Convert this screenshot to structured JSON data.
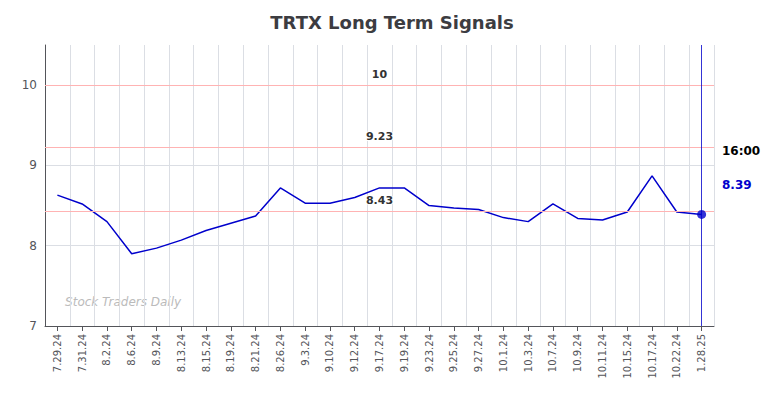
{
  "chart_data": {
    "type": "line",
    "title": "TRTX Long Term Signals",
    "categories": [
      "7.29.24",
      "7.31.24",
      "8.2.24",
      "8.6.24",
      "8.9.24",
      "8.13.24",
      "8.15.24",
      "8.19.24",
      "8.21.24",
      "8.26.24",
      "9.3.24",
      "9.10.24",
      "9.12.24",
      "9.17.24",
      "9.19.24",
      "9.23.24",
      "9.25.24",
      "9.27.24",
      "10.1.24",
      "10.3.24",
      "10.7.24",
      "10.9.24",
      "10.11.24",
      "10.15.24",
      "10.17.24",
      "10.22.24",
      "1.28.25"
    ],
    "values": [
      8.63,
      8.52,
      8.3,
      7.9,
      7.97,
      8.07,
      8.19,
      8.28,
      8.37,
      8.72,
      8.53,
      8.53,
      8.6,
      8.72,
      8.72,
      8.5,
      8.47,
      8.45,
      8.35,
      8.3,
      8.52,
      8.34,
      8.32,
      8.42,
      8.87,
      8.42,
      8.39
    ],
    "color": "#0000cc",
    "ylim": [
      7.0,
      10.5
    ],
    "yticks": [
      7,
      8,
      9,
      10
    ],
    "grid": true,
    "reference_lines": [
      {
        "value": 10.0,
        "label": "10",
        "color": "#ffb3b3"
      },
      {
        "value": 9.23,
        "label": "9.23",
        "color": "#ffb3b3"
      },
      {
        "value": 8.43,
        "label": "8.43",
        "color": "#ffb3b3"
      }
    ],
    "last_point_marker": "circle",
    "annotations": [
      {
        "text": "16:00"
      },
      {
        "text": "8.39",
        "color": "#0000cc"
      }
    ],
    "watermark": {
      "text": "Stock Traders Daily",
      "color": "#bbbbbb"
    }
  }
}
